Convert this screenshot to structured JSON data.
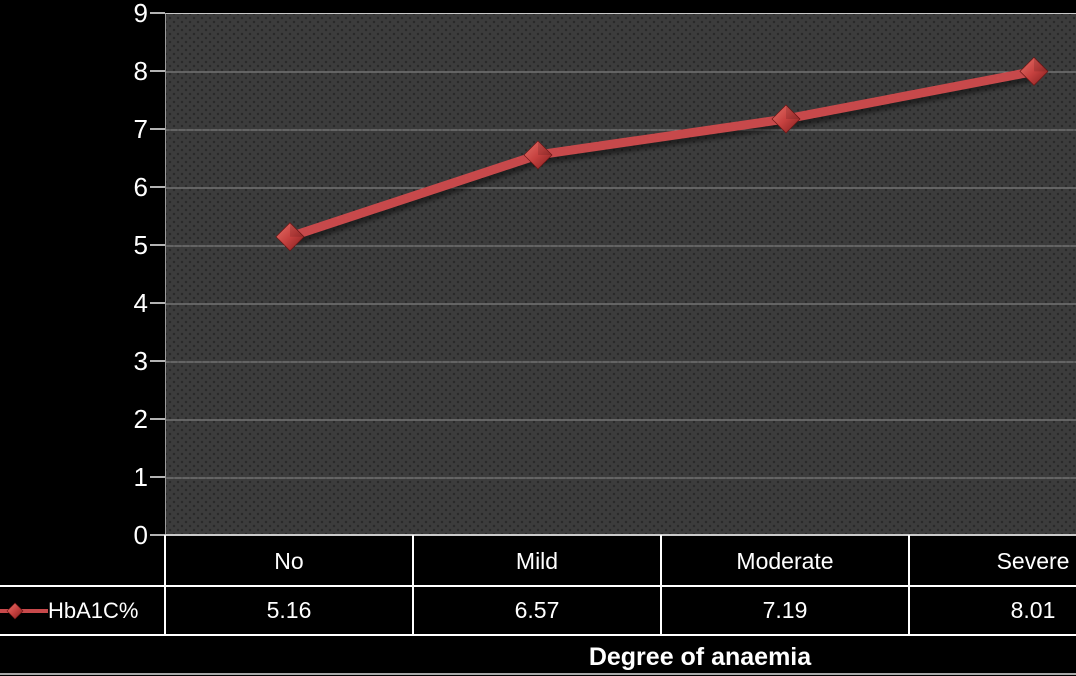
{
  "chart_data": {
    "type": "line",
    "categories": [
      "No",
      "Mild",
      "Moderate",
      "Severe"
    ],
    "series": [
      {
        "name": "HbA1C%",
        "values": [
          5.16,
          6.57,
          7.19,
          8.01
        ]
      }
    ],
    "title": "",
    "xlabel": "Degree of anaemia",
    "ylabel": "",
    "ylim": [
      0,
      9
    ],
    "ytick_interval": 1,
    "grid": true,
    "legend_position": "bottom-left-of-data-table",
    "data_table_shown": true,
    "style": "dark-3d-excel",
    "colors": {
      "background": "#000000",
      "plot_background": "#3c3c3c",
      "gridline": "#9a9a9a",
      "line": "#c7494b",
      "marker_light": "#e5736a",
      "marker_mid": "#c6413f",
      "marker_dark": "#7e1d1d",
      "text": "#ffffff",
      "table_border": "#ffffff"
    }
  },
  "yaxis": {
    "ticks": [
      "9",
      "8",
      "7",
      "6",
      "5",
      "4",
      "3",
      "2",
      "1",
      "0"
    ]
  }
}
